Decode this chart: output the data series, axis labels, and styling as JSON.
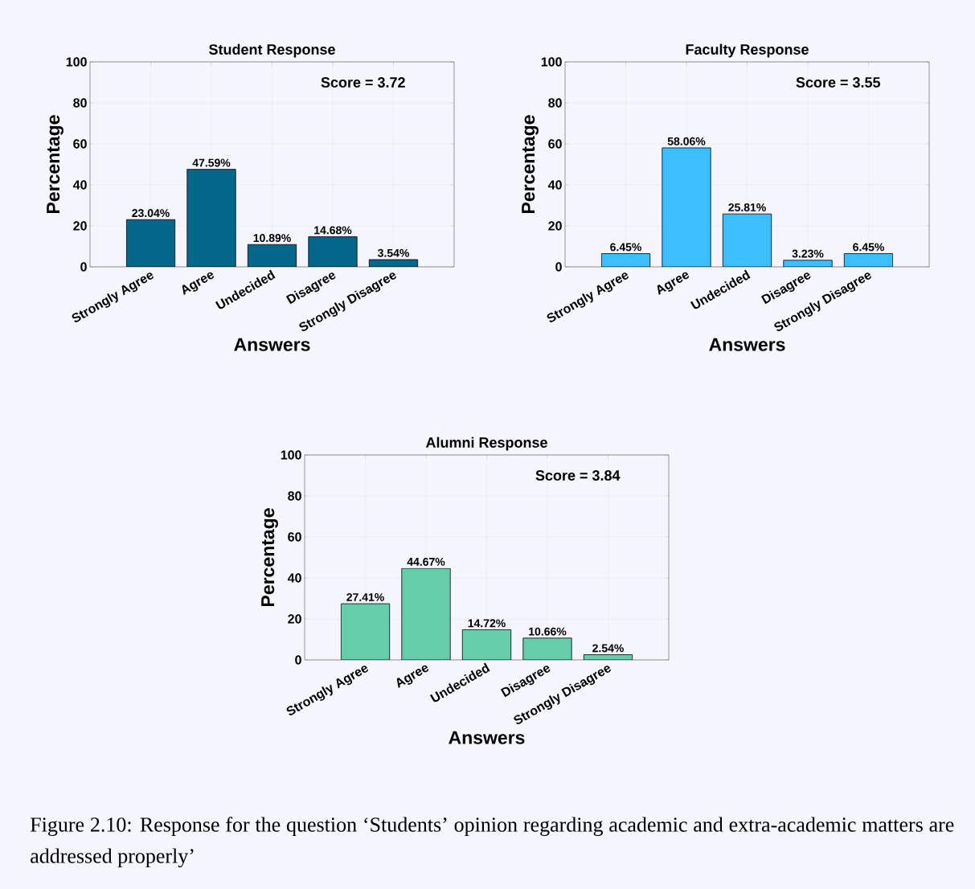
{
  "chart_data": [
    {
      "type": "bar",
      "title": "Student Response",
      "xlabel": "Answers",
      "ylabel": "Percentage",
      "categories": [
        "Strongly Agree",
        "Agree",
        "Undecided",
        "Disagree",
        "Strongly Disagree"
      ],
      "values": [
        23.04,
        47.59,
        10.89,
        14.68,
        3.54
      ],
      "color": "#02678a",
      "value_labels": [
        "23.04%",
        "47.59%",
        "10.89%",
        "14.68%",
        "3.54%"
      ],
      "ylim": [
        0,
        100
      ],
      "yticks": [
        0,
        20,
        40,
        60,
        80,
        100
      ],
      "grid": true,
      "annotations": [
        "Score = 3.72"
      ]
    },
    {
      "type": "bar",
      "title": "Faculty Response",
      "xlabel": "Answers",
      "ylabel": "Percentage",
      "categories": [
        "Strongly Agree",
        "Agree",
        "Undecided",
        "Disagree",
        "Strongly Disagree"
      ],
      "values": [
        6.45,
        58.06,
        25.81,
        3.23,
        6.45
      ],
      "color": "#3dbeff",
      "value_labels": [
        "6.45%",
        "58.06%",
        "25.81%",
        "3.23%",
        "6.45%"
      ],
      "ylim": [
        0,
        100
      ],
      "yticks": [
        0,
        20,
        40,
        60,
        80,
        100
      ],
      "grid": true,
      "annotations": [
        "Score = 3.55"
      ]
    },
    {
      "type": "bar",
      "title": "Alumni Response",
      "xlabel": "Answers",
      "ylabel": "Percentage",
      "categories": [
        "Strongly Agree",
        "Agree",
        "Undecided",
        "Disagree",
        "Strongly Disagree"
      ],
      "values": [
        27.41,
        44.67,
        14.72,
        10.66,
        2.54
      ],
      "color": "#66cdaa",
      "value_labels": [
        "27.41%",
        "44.67%",
        "14.72%",
        "10.66%",
        "2.54%"
      ],
      "ylim": [
        0,
        100
      ],
      "yticks": [
        0,
        20,
        40,
        60,
        80,
        100
      ],
      "grid": true,
      "annotations": [
        "Score = 3.84"
      ]
    },
    {
      "type": "other",
      "annotations": [
        "Figure 2.10: Response for the question ‘Students’ opinion regarding academic and extra-academic matters are addressed properly’"
      ]
    }
  ]
}
